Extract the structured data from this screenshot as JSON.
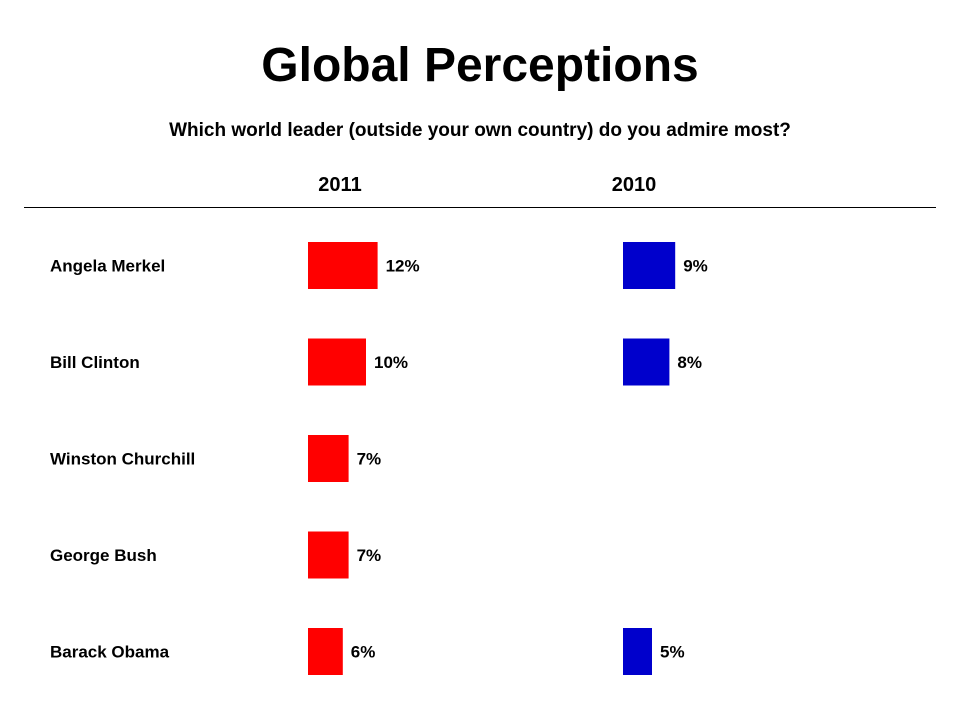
{
  "chart_data": {
    "type": "bar",
    "title": "Global Perceptions",
    "subtitle": "Which world leader (outside your own country) do you admire most?",
    "categories": [
      "Angela Merkel",
      "Bill Clinton",
      "Winston Churchill",
      "George Bush",
      "Barack Obama"
    ],
    "series": [
      {
        "name": "2011",
        "color": "#ff0000",
        "values": [
          12,
          10,
          7,
          7,
          6
        ],
        "labels": [
          "12%",
          "10%",
          "7%",
          "7%",
          "6%"
        ]
      },
      {
        "name": "2010",
        "color": "#0000cc",
        "values": [
          9,
          8,
          null,
          null,
          5
        ],
        "labels": [
          "9%",
          "8%",
          "",
          "",
          "5%"
        ]
      }
    ],
    "orientation": "horizontal",
    "grid": false,
    "legend": "none"
  }
}
